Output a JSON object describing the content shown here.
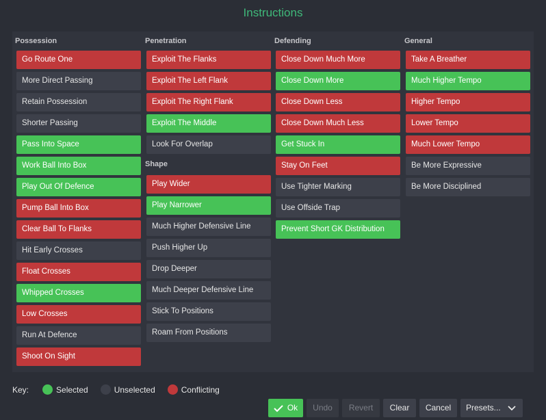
{
  "title": "Instructions",
  "colors": {
    "selected": "#47c257",
    "unselected": "#3d404a",
    "conflicting": "#c0393b",
    "title": "#3fb97a"
  },
  "columns": [
    {
      "heading": "Possession",
      "items": [
        {
          "label": "Go Route One",
          "state": "conflicting"
        },
        {
          "label": "More Direct Passing",
          "state": "unselected"
        },
        {
          "label": "Retain Possession",
          "state": "unselected"
        },
        {
          "label": "Shorter Passing",
          "state": "unselected"
        },
        {
          "label": "Pass Into Space",
          "state": "selected"
        },
        {
          "label": "Work Ball Into Box",
          "state": "selected"
        },
        {
          "label": "Play Out Of Defence",
          "state": "selected"
        },
        {
          "label": "Pump Ball Into Box",
          "state": "conflicting"
        },
        {
          "label": "Clear Ball To Flanks",
          "state": "conflicting"
        },
        {
          "label": "Hit Early Crosses",
          "state": "unselected"
        },
        {
          "label": "Float Crosses",
          "state": "conflicting"
        },
        {
          "label": "Whipped Crosses",
          "state": "selected"
        },
        {
          "label": "Low Crosses",
          "state": "conflicting"
        },
        {
          "label": "Run At Defence",
          "state": "unselected"
        },
        {
          "label": "Shoot On Sight",
          "state": "conflicting"
        }
      ]
    },
    {
      "heading": "Penetration",
      "items": [
        {
          "label": "Exploit The Flanks",
          "state": "conflicting"
        },
        {
          "label": "Exploit The Left Flank",
          "state": "conflicting"
        },
        {
          "label": "Exploit The Right Flank",
          "state": "conflicting"
        },
        {
          "label": "Exploit The Middle",
          "state": "selected"
        },
        {
          "label": "Look For Overlap",
          "state": "unselected"
        }
      ],
      "subheading": "Shape",
      "subitems": [
        {
          "label": "Play Wider",
          "state": "conflicting"
        },
        {
          "label": "Play Narrower",
          "state": "selected"
        },
        {
          "label": "Much Higher Defensive Line",
          "state": "unselected"
        },
        {
          "label": "Push Higher Up",
          "state": "unselected"
        },
        {
          "label": "Drop Deeper",
          "state": "unselected"
        },
        {
          "label": "Much Deeper Defensive Line",
          "state": "unselected"
        },
        {
          "label": "Stick To Positions",
          "state": "unselected"
        },
        {
          "label": "Roam From Positions",
          "state": "unselected"
        }
      ]
    },
    {
      "heading": "Defending",
      "items": [
        {
          "label": "Close Down Much More",
          "state": "conflicting"
        },
        {
          "label": "Close Down More",
          "state": "selected"
        },
        {
          "label": "Close Down Less",
          "state": "conflicting"
        },
        {
          "label": "Close Down Much Less",
          "state": "conflicting"
        },
        {
          "label": "Get Stuck In",
          "state": "selected"
        },
        {
          "label": "Stay On Feet",
          "state": "conflicting"
        },
        {
          "label": "Use Tighter Marking",
          "state": "unselected"
        },
        {
          "label": "Use Offside Trap",
          "state": "unselected"
        },
        {
          "label": "Prevent Short GK Distribution",
          "state": "selected"
        }
      ]
    },
    {
      "heading": "General",
      "items": [
        {
          "label": "Take A Breather",
          "state": "conflicting"
        },
        {
          "label": "Much Higher Tempo",
          "state": "selected"
        },
        {
          "label": "Higher Tempo",
          "state": "conflicting"
        },
        {
          "label": "Lower Tempo",
          "state": "conflicting"
        },
        {
          "label": "Much Lower Tempo",
          "state": "conflicting"
        },
        {
          "label": "Be More Expressive",
          "state": "unselected"
        },
        {
          "label": "Be More Disciplined",
          "state": "unselected"
        }
      ]
    }
  ],
  "key": {
    "label": "Key:",
    "selected": "Selected",
    "unselected": "Unselected",
    "conflicting": "Conflicting"
  },
  "footer": {
    "ok": "Ok",
    "undo": "Undo",
    "revert": "Revert",
    "clear": "Clear",
    "cancel": "Cancel",
    "presets": "Presets...",
    "ok_icon": "check-icon",
    "presets_icon": "chevron-down-icon"
  }
}
